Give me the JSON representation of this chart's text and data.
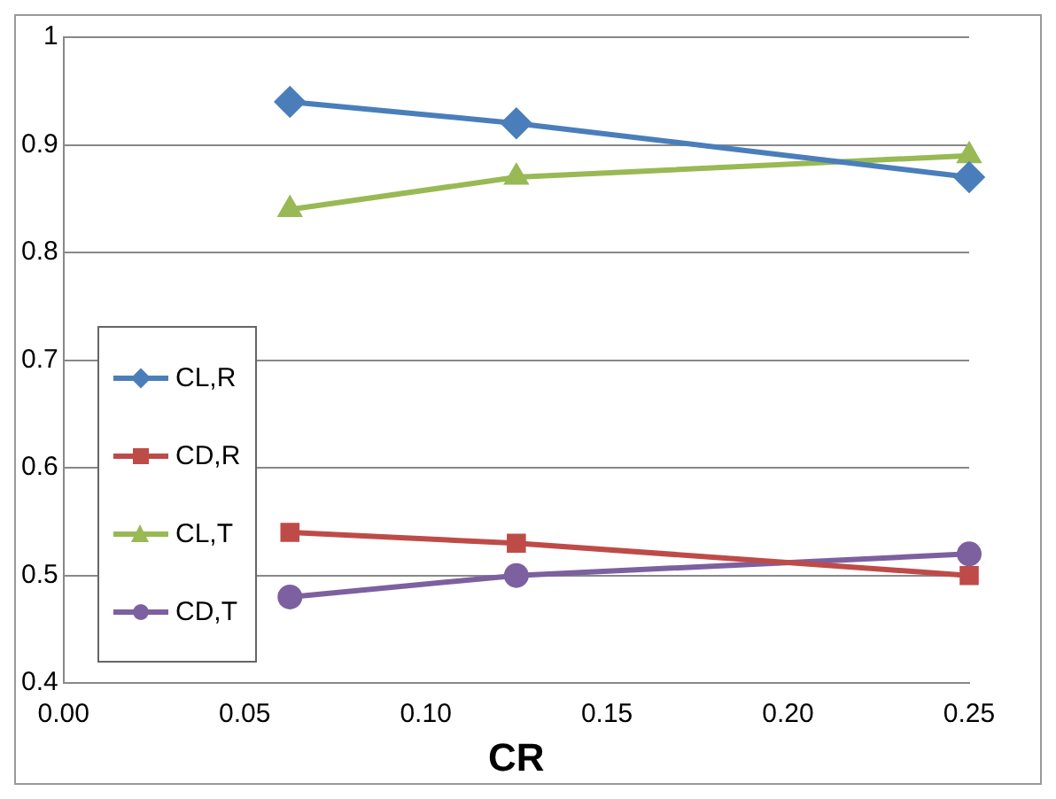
{
  "chart_data": {
    "type": "line",
    "xlabel": "CR",
    "x": [
      0.0625,
      0.125,
      0.25
    ],
    "series": [
      {
        "name": "CL,R",
        "color": "#4a7ebb",
        "values": [
          0.94,
          0.92,
          0.87
        ],
        "marker": "diamond"
      },
      {
        "name": "CD,R",
        "color": "#be4b48",
        "values": [
          0.54,
          0.53,
          0.5
        ],
        "marker": "square"
      },
      {
        "name": "CL,T",
        "color": "#98b954",
        "values": [
          0.84,
          0.87,
          0.89
        ],
        "marker": "triangle"
      },
      {
        "name": "CD,T",
        "color": "#7d60a0",
        "values": [
          0.48,
          0.5,
          0.52
        ],
        "marker": "circle"
      }
    ],
    "xlim": [
      0,
      0.25
    ],
    "xticks": [
      {
        "value": 0,
        "label": "0.00"
      },
      {
        "value": 0.05,
        "label": "0.05"
      },
      {
        "value": 0.1,
        "label": "0.10"
      },
      {
        "value": 0.15,
        "label": "0.15"
      },
      {
        "value": 0.2,
        "label": "0.20"
      },
      {
        "value": 0.25,
        "label": "0.25"
      }
    ],
    "ylim": [
      0.4,
      1
    ],
    "yticks": [
      0.4,
      0.5,
      0.6,
      0.7,
      0.8,
      0.9,
      1
    ],
    "grid": "y",
    "legend": "bottom left"
  }
}
